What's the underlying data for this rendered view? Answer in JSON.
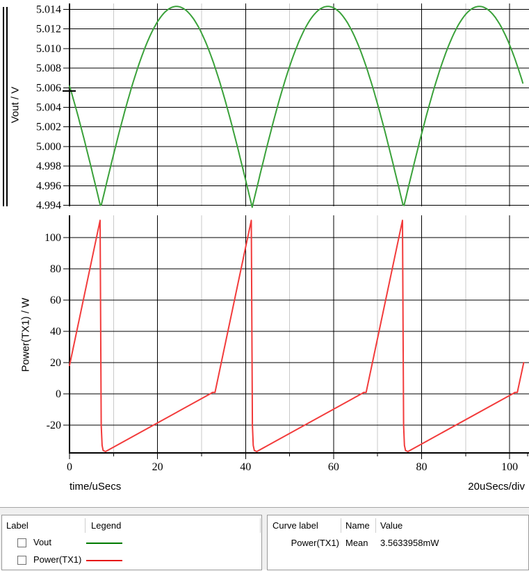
{
  "x_axis": {
    "label": "time/uSecs",
    "scale_note": "20uSecs/div"
  },
  "chart_data": [
    {
      "type": "line",
      "ylabel": "Vout / V",
      "ylim": [
        4.9939,
        5.0146
      ],
      "yticks": [
        4.994,
        4.996,
        4.998,
        5.0,
        5.002,
        5.004,
        5.006,
        5.008,
        5.01,
        5.012,
        5.014
      ],
      "ytick_labels": [
        "4.994",
        "4.996",
        "4.998",
        "5.000",
        "5.002",
        "5.004",
        "5.006",
        "5.008",
        "5.010",
        "5.012",
        "5.014"
      ],
      "xlim": [
        0,
        104.4
      ],
      "xticks": [
        0,
        20,
        40,
        60,
        80,
        100
      ],
      "xminor": [
        10,
        30,
        50,
        70,
        90
      ],
      "grid": true,
      "series": [
        {
          "name": "Vout",
          "color": "#3aa13a",
          "width": 2,
          "waveform": {
            "kind": "abs_sine",
            "min": 4.9938,
            "max": 5.0143,
            "trough_t": 7.1,
            "period": 34.4,
            "t_start": 0,
            "t_end": 103.2
          },
          "peaks": [
            [
              24.3,
              5.0143
            ],
            [
              58.7,
              5.0143
            ],
            [
              93.1,
              5.0143
            ]
          ],
          "troughs": [
            [
              7.1,
              4.9938
            ],
            [
              41.5,
              4.9938
            ],
            [
              75.9,
              4.9938
            ]
          ],
          "start_point": [
            0,
            5.006
          ],
          "end_point": [
            103.2,
            5.006
          ]
        }
      ]
    },
    {
      "type": "line",
      "ylabel": "Power(TX1) / W",
      "ylim": [
        -37.8,
        114.2
      ],
      "yticks": [
        -20,
        0,
        20,
        40,
        60,
        80,
        100
      ],
      "ytick_labels": [
        "-20",
        "0",
        "20",
        "40",
        "60",
        "80",
        "100"
      ],
      "xlim": [
        0,
        104.4
      ],
      "xticks": [
        0,
        20,
        40,
        60,
        80,
        100
      ],
      "xtick_labels": [
        "0",
        "20",
        "40",
        "60",
        "80",
        "100"
      ],
      "xminor": [
        10,
        30,
        50,
        70,
        90
      ],
      "grid": true,
      "series": [
        {
          "name": "Power(TX1)",
          "color": "#f23b3b",
          "width": 2,
          "points": [
            [
              0,
              18.1
            ],
            [
              6.95,
              111
            ],
            [
              7.2,
              -20
            ],
            [
              7.4,
              -33
            ],
            [
              7.65,
              -36.3
            ],
            [
              8.2,
              -36.9
            ],
            [
              32.1,
              0.2
            ],
            [
              32.5,
              0.9
            ],
            [
              33.05,
              0.9
            ],
            [
              41.3,
              111
            ],
            [
              41.55,
              -20
            ],
            [
              41.75,
              -33
            ],
            [
              42.0,
              -36.3
            ],
            [
              42.55,
              -36.9
            ],
            [
              66.45,
              0.2
            ],
            [
              66.85,
              0.9
            ],
            [
              67.4,
              0.9
            ],
            [
              75.65,
              111
            ],
            [
              75.9,
              -20
            ],
            [
              76.1,
              -33
            ],
            [
              76.35,
              -36.3
            ],
            [
              76.9,
              -36.9
            ],
            [
              100.8,
              0.2
            ],
            [
              101.2,
              0.9
            ],
            [
              101.75,
              0.9
            ],
            [
              103.2,
              20
            ]
          ]
        }
      ]
    }
  ],
  "panels": {
    "left": {
      "columns": [
        "Label",
        "Legend"
      ],
      "rows": [
        {
          "label": "Vout",
          "color": "#007a00",
          "checked": false
        },
        {
          "label": "Power(TX1)",
          "color": "#e60d0d",
          "checked": false
        }
      ]
    },
    "right": {
      "columns": [
        "Curve label",
        "Name",
        "Value"
      ],
      "rows": [
        {
          "curve_label": "Power(TX1)",
          "name": "Mean",
          "value": "3.5633958mW"
        }
      ]
    }
  }
}
